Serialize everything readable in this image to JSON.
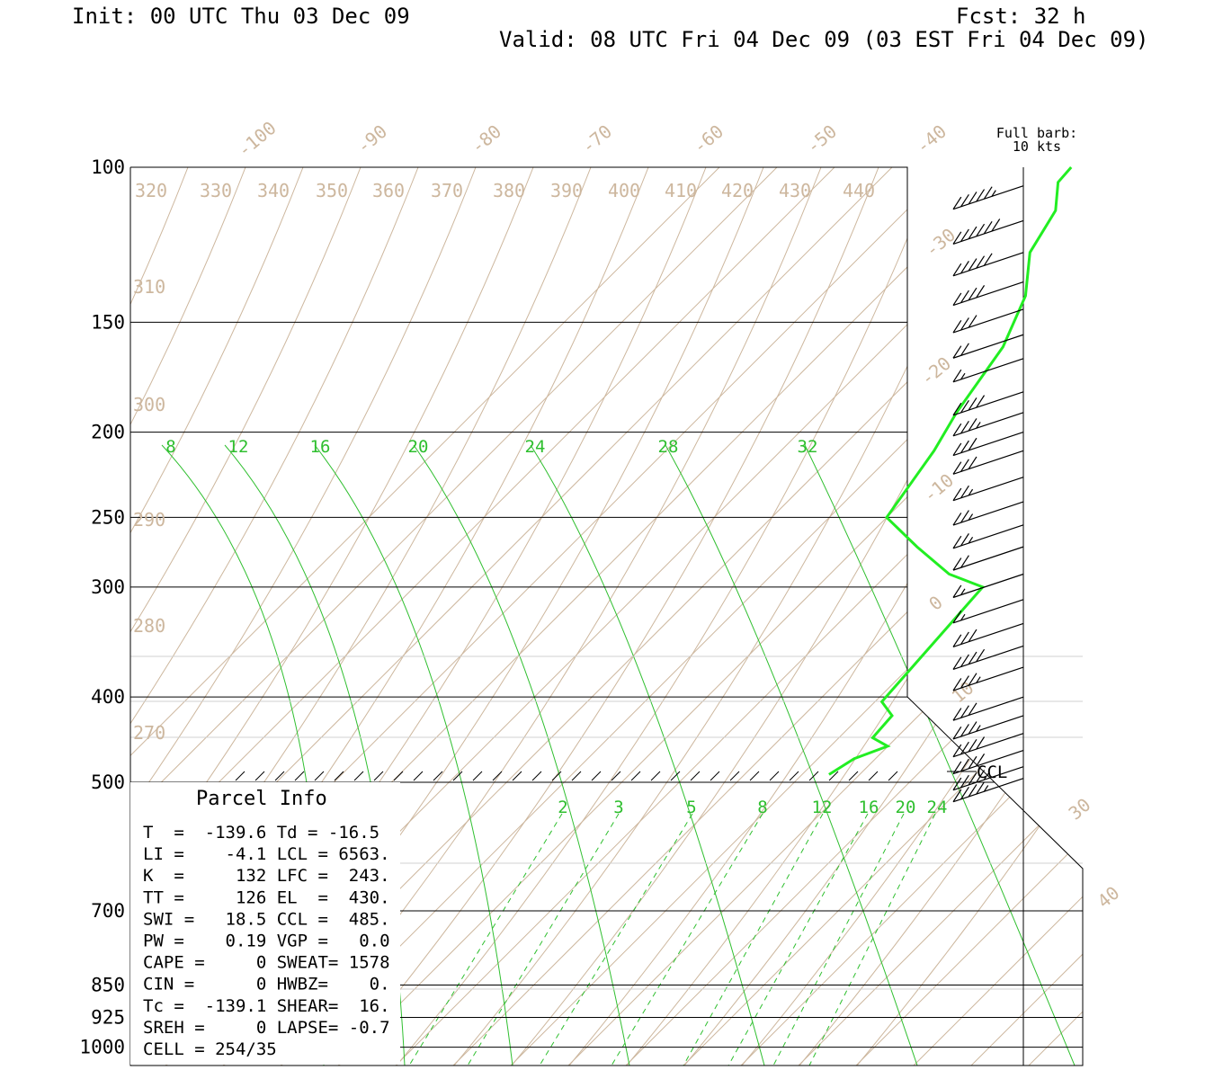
{
  "header": {
    "init": "Init: 00 UTC Thu 03 Dec 09",
    "fcst": "Fcst:   32 h",
    "valid": "Valid: 08 UTC Fri 04 Dec 09 (03 EST Fri 04 Dec 09)"
  },
  "barb_legend": {
    "line1": "Full barb:",
    "line2": "10 kts"
  },
  "ccl_label": "CCL",
  "parcel_info": {
    "title": "Parcel Info",
    "rows": [
      "T  =  -139.6 Td = -16.5",
      "LI =    -4.1 LCL = 6563.",
      "K  =     132 LFC =  243.",
      "TT =     126 EL  =  430.",
      "SWI =   18.5 CCL =  485.",
      "PW =    0.19 VGP =   0.0",
      "CAPE =     0 SWEAT= 1578",
      "CIN =      0 HWBZ=    0.",
      "Tc =  -139.1 SHEAR=  16.",
      "SREH =     0 LAPSE= -0.7",
      "CELL = 254/35"
    ]
  },
  "colors": {
    "sounding": "#22ee22",
    "grid_lines": "#cdb79e",
    "mixing_ratio": "#2fbf2f",
    "axes": "#000000"
  },
  "chart_data": {
    "type": "line",
    "title": "",
    "pressure_levels": [
      "100",
      "150",
      "200",
      "250",
      "300",
      "400",
      "500",
      "700",
      "850",
      "925",
      "1000"
    ],
    "isotherm_labels": [
      "-100",
      "-90",
      "-80",
      "-70",
      "-60",
      "-50",
      "-40",
      "-30",
      "-20",
      "-10",
      "0",
      "10",
      "30",
      "40"
    ],
    "theta_labels_top": [
      "320",
      "330",
      "340",
      "350",
      "360",
      "370",
      "380",
      "390",
      "400",
      "410",
      "420",
      "430",
      "440"
    ],
    "theta_labels_left": [
      "310",
      "300",
      "290",
      "280",
      "270"
    ],
    "moist_adiabat_labels": [
      "8",
      "12",
      "16",
      "20",
      "24",
      "28",
      "32"
    ],
    "mixing_ratio_labels": [
      "2",
      "3",
      "5",
      "8",
      "12",
      "16",
      "20",
      "24"
    ],
    "series": [
      {
        "type": "line",
        "pressure": [
          490,
          470,
          455,
          445,
          420,
          405,
          390,
          340,
          300,
          290,
          270,
          250,
          210,
          190,
          160,
          140,
          125,
          112,
          104,
          100
        ],
        "temperature_C": [
          23,
          24,
          26,
          24,
          24,
          22,
          22,
          22,
          22,
          18,
          13,
          8,
          7,
          6,
          5,
          3,
          0,
          -1,
          -3,
          -3
        ]
      }
    ],
    "wind_barbs": [
      {
        "pressure": 105,
        "speed_kt": 55
      },
      {
        "pressure": 115,
        "speed_kt": 60
      },
      {
        "pressure": 125,
        "speed_kt": 50
      },
      {
        "pressure": 135,
        "speed_kt": 40
      },
      {
        "pressure": 145,
        "speed_kt": 30
      },
      {
        "pressure": 155,
        "speed_kt": 20
      },
      {
        "pressure": 165,
        "speed_kt": 15
      },
      {
        "pressure": 180,
        "speed_kt": 40
      },
      {
        "pressure": 190,
        "speed_kt": 35
      },
      {
        "pressure": 200,
        "speed_kt": 30
      },
      {
        "pressure": 210,
        "speed_kt": 30
      },
      {
        "pressure": 225,
        "speed_kt": 25
      },
      {
        "pressure": 240,
        "speed_kt": 25
      },
      {
        "pressure": 255,
        "speed_kt": 25
      },
      {
        "pressure": 270,
        "speed_kt": 20
      },
      {
        "pressure": 290,
        "speed_kt": 15
      },
      {
        "pressure": 310,
        "speed_kt": 15
      },
      {
        "pressure": 330,
        "speed_kt": 30
      },
      {
        "pressure": 350,
        "speed_kt": 40
      },
      {
        "pressure": 370,
        "speed_kt": 35
      },
      {
        "pressure": 400,
        "speed_kt": 30
      },
      {
        "pressure": 420,
        "speed_kt": 35
      },
      {
        "pressure": 440,
        "speed_kt": 40
      },
      {
        "pressure": 460,
        "speed_kt": 40
      },
      {
        "pressure": 480,
        "speed_kt": 45
      },
      {
        "pressure": 495,
        "speed_kt": 45
      }
    ]
  }
}
